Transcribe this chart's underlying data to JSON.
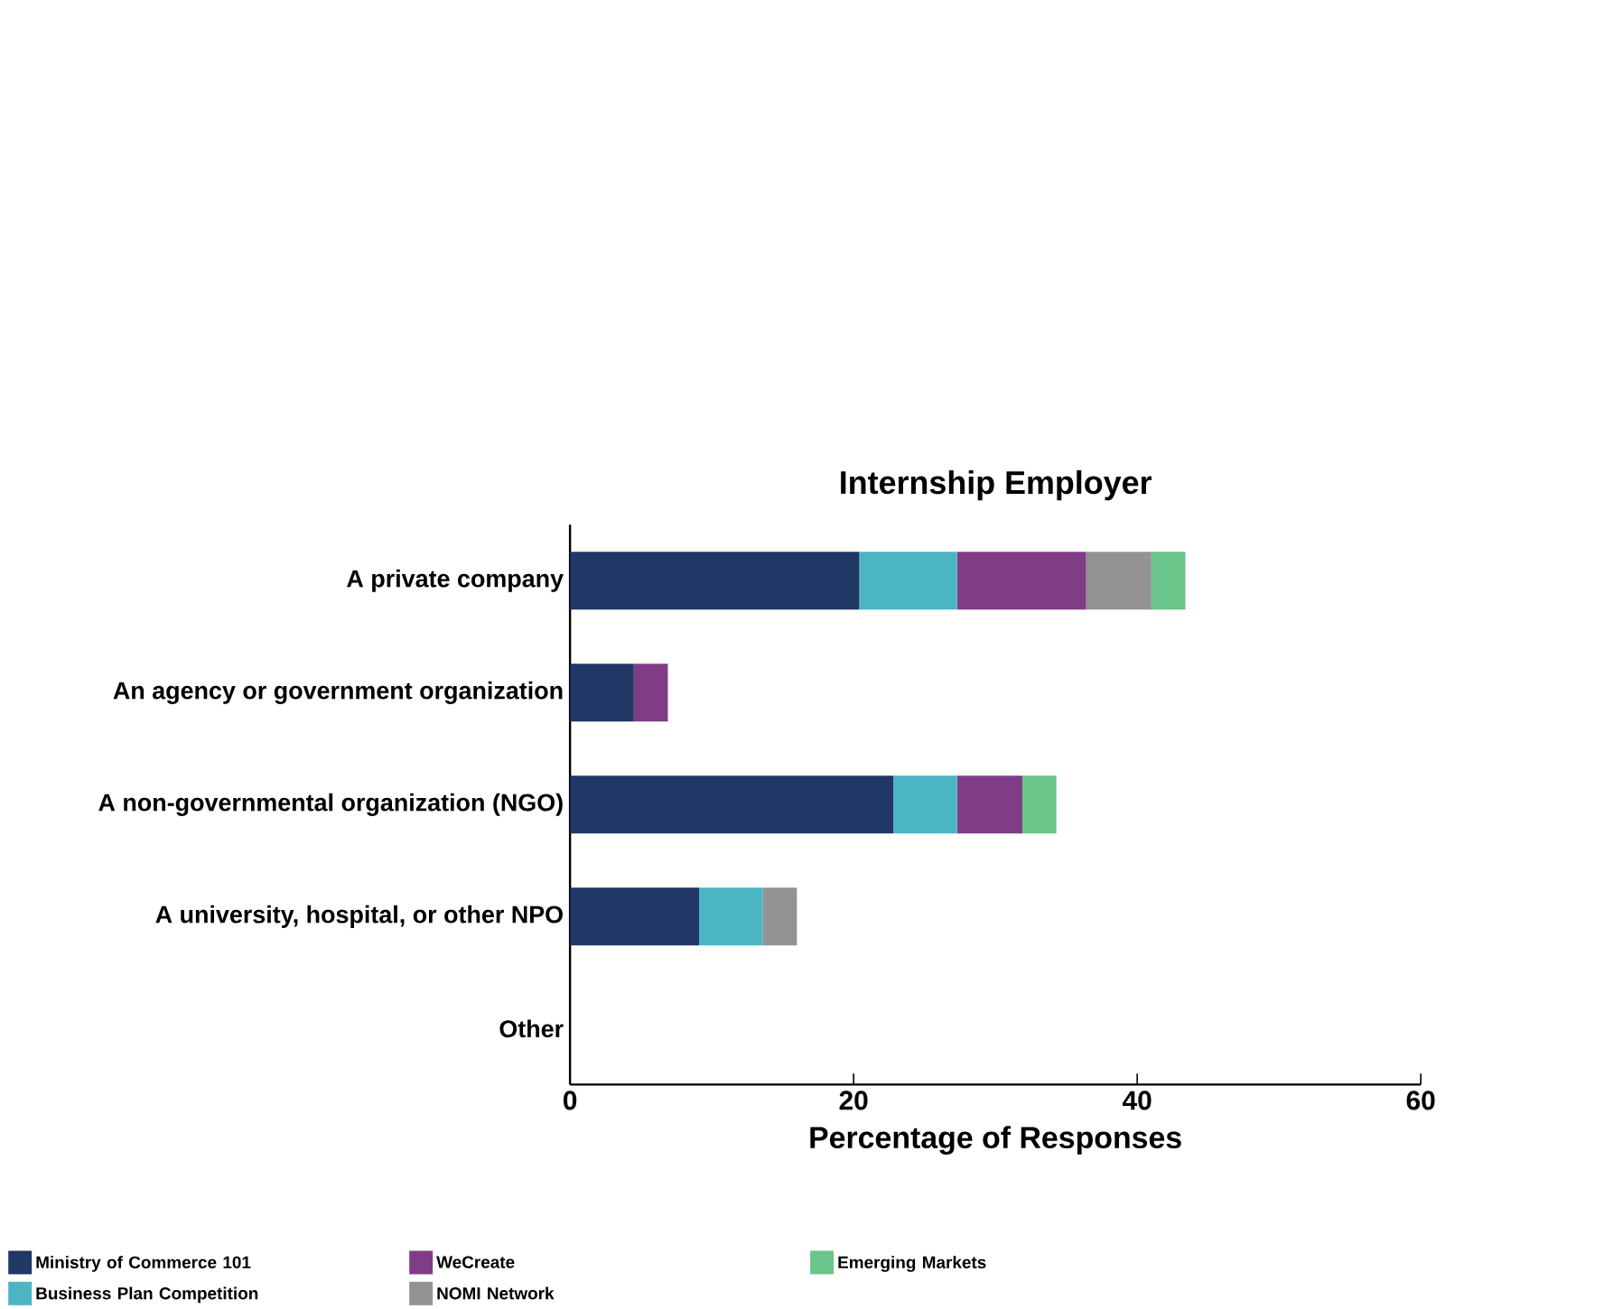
{
  "chart_data": {
    "type": "bar",
    "orientation": "horizontal",
    "stacked": true,
    "title": "Internship Employer",
    "xlabel": "Percentage of Responses",
    "categories": [
      "A private company",
      "An agency or government organization",
      "A non-governmental organization (NGO)",
      "A university, hospital, or other NPO",
      "Other"
    ],
    "series": [
      {
        "name": "Ministry of Commerce 101",
        "color": "#213765",
        "values": [
          20.4,
          4.5,
          22.8,
          9.1,
          0
        ]
      },
      {
        "name": "Business Plan Competition",
        "color": "#4bb5c4",
        "values": [
          6.9,
          0,
          4.5,
          4.5,
          0
        ]
      },
      {
        "name": "WeCreate",
        "color": "#803d87",
        "values": [
          9.1,
          2.4,
          4.6,
          0,
          0
        ]
      },
      {
        "name": "NOMI Network",
        "color": "#939393",
        "values": [
          4.6,
          0,
          0,
          2.4,
          0
        ]
      },
      {
        "name": "Emerging Markets",
        "color": "#6bc48a",
        "values": [
          2.4,
          0,
          2.4,
          0,
          0
        ]
      }
    ],
    "xlim": [
      0,
      60
    ],
    "xticks": [
      0,
      20,
      40,
      60
    ],
    "legend": "bottom",
    "grid": false
  }
}
